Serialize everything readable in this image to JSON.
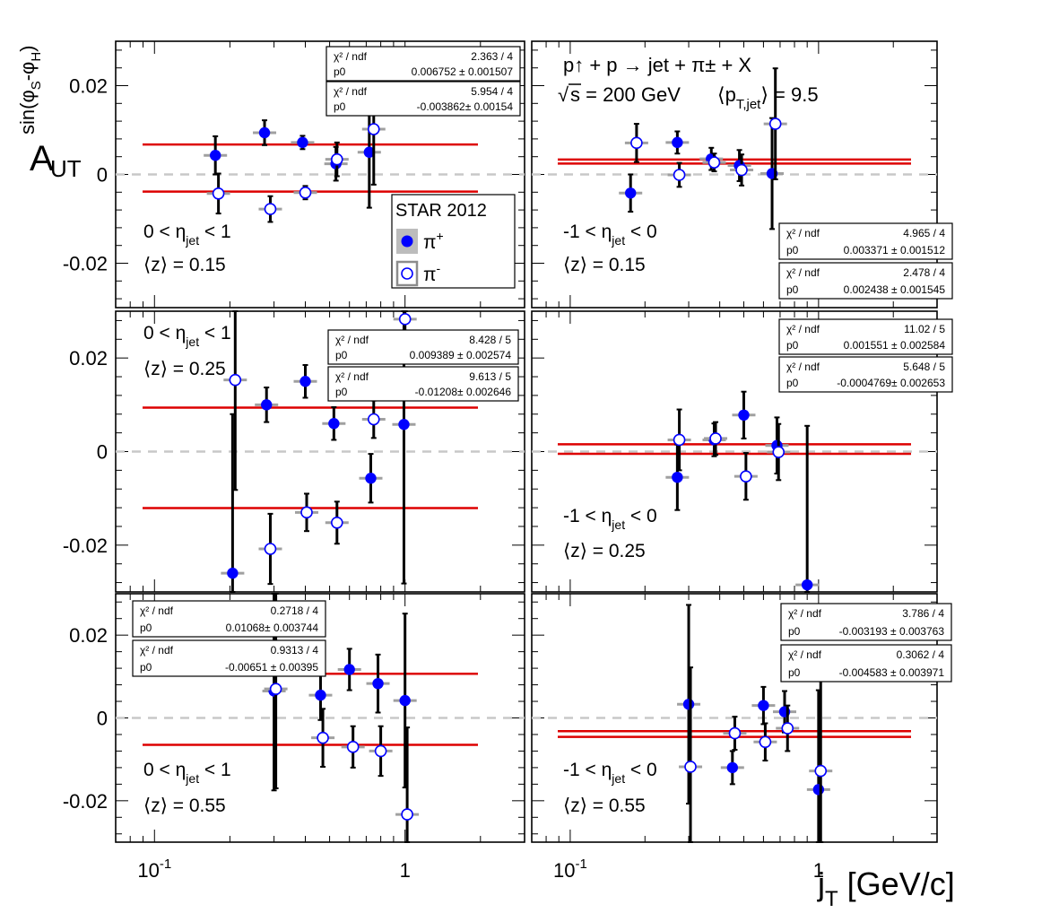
{
  "axes": {
    "ylabel": {
      "main": "A",
      "sub": "UT",
      "sup": "sin(φ",
      "sup_s1": "S",
      "sup_mid": "-φ",
      "sup_s2": "H",
      "sup_end": ")"
    },
    "xlabel": {
      "main": "j",
      "sub": "T",
      "unit": " [GeV/c]"
    },
    "ytick_labels": [
      "0.02",
      "0",
      "-0.02"
    ],
    "xtick_labels": [
      {
        "base": "10",
        "exp": "-1"
      },
      {
        "base": "1",
        "exp": ""
      }
    ]
  },
  "process": {
    "line1": "p↑ + p → jet + π± + X",
    "sqrt": "√",
    "s_text": "s = 200 GeV",
    "pt_text": "⟨p",
    "pt_sub": "T,jet",
    "pt_end": "⟩ = 9.5"
  },
  "legend": {
    "title": "STAR 2012",
    "pi_plus": "π",
    "pi_plus_sup": "+",
    "pi_minus": "π",
    "pi_minus_sup": "-"
  },
  "fit_labels": {
    "chi2": "χ² / ndf",
    "p0": "p0"
  },
  "eta_labels": {
    "pos": {
      "pre": "0 < η",
      "sub": "jet",
      "post": " < 1"
    },
    "neg": {
      "pre": "-1 < η",
      "sub": "jet",
      "post": " < 0"
    }
  },
  "colors": {
    "pi_plus": "#0000ff",
    "pi_minus": "#0000ff",
    "fit_line": "#dd0000",
    "zero_line": "#c8c8c8",
    "xerr_minus": "#a0a0a0"
  },
  "chart_data": [
    {
      "type": "scatter",
      "panel": "top-left",
      "eta": "pos",
      "z_label": "⟨z⟩ = 0.15",
      "xscale": "log",
      "xlim": [
        0.07,
        3.0
      ],
      "ylim": [
        -0.03,
        0.03
      ],
      "fits": [
        {
          "chi2": "2.363 / 4",
          "p0": "0.006752 ± 0.001507",
          "value": 0.00675
        },
        {
          "chi2": "5.954 / 4",
          "p0": "-0.003862± 0.00154",
          "value": -0.00386
        }
      ],
      "series": [
        {
          "name": "π+",
          "points": [
            [
              0.175,
              0.0043,
              0.0043
            ],
            [
              0.275,
              0.0094,
              0.0028
            ],
            [
              0.39,
              0.0072,
              0.0015
            ],
            [
              0.53,
              0.0024,
              0.0038
            ],
            [
              0.72,
              0.005,
              0.0125
            ]
          ]
        },
        {
          "name": "π-",
          "points": [
            [
              0.18,
              -0.0043,
              0.0045
            ],
            [
              0.29,
              -0.0078,
              0.0029
            ],
            [
              0.4,
              -0.0041,
              0.0015
            ],
            [
              0.535,
              0.0034,
              0.0038
            ],
            [
              0.75,
              0.0102,
              0.0125
            ]
          ]
        }
      ]
    },
    {
      "type": "scatter",
      "panel": "top-right",
      "eta": "neg",
      "z_label": "⟨z⟩ = 0.15",
      "xscale": "log",
      "xlim": [
        0.07,
        3.0
      ],
      "ylim": [
        -0.03,
        0.03
      ],
      "fits": [
        {
          "chi2": "4.965 / 4",
          "p0": "0.003371 ± 0.001512",
          "value": 0.00337
        },
        {
          "chi2": "2.478 / 4",
          "p0": "0.002438 ± 0.001545",
          "value": 0.00244
        }
      ],
      "series": [
        {
          "name": "π+",
          "points": [
            [
              0.175,
              -0.0042,
              0.0042
            ],
            [
              0.27,
              0.0072,
              0.0025
            ],
            [
              0.37,
              0.0035,
              0.0025
            ],
            [
              0.48,
              0.002,
              0.0035
            ],
            [
              0.65,
              0.0002,
              0.0125
            ]
          ]
        },
        {
          "name": "π-",
          "points": [
            [
              0.185,
              0.0071,
              0.0043
            ],
            [
              0.275,
              -0.0001,
              0.0027
            ],
            [
              0.38,
              0.0027,
              0.002
            ],
            [
              0.49,
              0.001,
              0.0035
            ],
            [
              0.67,
              0.0114,
              0.0125
            ]
          ]
        }
      ]
    },
    {
      "type": "scatter",
      "panel": "middle-left",
      "eta": "pos",
      "z_label": "⟨z⟩ = 0.25",
      "xscale": "log",
      "xlim": [
        0.07,
        3.0
      ],
      "ylim": [
        -0.03,
        0.03
      ],
      "fits": [
        {
          "chi2": "8.428 / 5",
          "p0": "0.009389 ± 0.002574",
          "value": 0.00939
        },
        {
          "chi2": "9.613 / 5",
          "p0": "-0.01208± 0.002646",
          "value": -0.01208
        }
      ],
      "series": [
        {
          "name": "π+",
          "points": [
            [
              0.205,
              -0.026,
              0.034
            ],
            [
              0.28,
              0.01,
              0.0037
            ],
            [
              0.4,
              0.015,
              0.0035
            ],
            [
              0.52,
              0.006,
              0.0035
            ],
            [
              0.73,
              -0.0057,
              0.0052
            ],
            [
              0.99,
              0.0058,
              0.034
            ]
          ]
        },
        {
          "name": "π-",
          "points": [
            [
              0.21,
              0.0153,
              0.0235
            ],
            [
              0.29,
              -0.0208,
              0.0075
            ],
            [
              0.405,
              -0.013,
              0.004
            ],
            [
              0.535,
              -0.0152,
              0.0045
            ],
            [
              0.75,
              0.0069,
              0.004
            ],
            [
              1.0,
              0.0283,
              0.007
            ]
          ]
        }
      ]
    },
    {
      "type": "scatter",
      "panel": "middle-right",
      "eta": "neg",
      "z_label": "⟨z⟩ = 0.25",
      "xscale": "log",
      "xlim": [
        0.07,
        3.0
      ],
      "ylim": [
        -0.03,
        0.03
      ],
      "fits": [
        {
          "chi2": "11.02 / 5",
          "p0": "0.001551 ± 0.002584",
          "value": 0.00155
        },
        {
          "chi2": "5.648 / 5",
          "p0": "-0.0004769± 0.002653",
          "value": -0.00048
        }
      ],
      "series": [
        {
          "name": "π+",
          "points": [
            [
              0.27,
              -0.0055,
              0.007
            ],
            [
              0.38,
              0.0025,
              0.0035
            ],
            [
              0.5,
              0.0078,
              0.005
            ],
            [
              0.68,
              0.0013,
              0.006
            ],
            [
              0.9,
              -0.0285,
              0.034
            ]
          ]
        },
        {
          "name": "π-",
          "points": [
            [
              0.275,
              0.0025,
              0.0065
            ],
            [
              0.385,
              0.0028,
              0.0035
            ],
            [
              0.51,
              -0.0053,
              0.005
            ],
            [
              0.69,
              -0.0001,
              0.006
            ]
          ]
        }
      ]
    },
    {
      "type": "scatter",
      "panel": "bottom-left",
      "eta": "pos",
      "z_label": "⟨z⟩ = 0.55",
      "xscale": "log",
      "xlim": [
        0.07,
        3.0
      ],
      "ylim": [
        -0.03,
        0.03
      ],
      "fits": [
        {
          "chi2": "0.2718 / 4",
          "p0": "0.01068± 0.003744",
          "value": 0.01068
        },
        {
          "chi2": "0.9313 / 4",
          "p0": "-0.00651 ± 0.00395",
          "value": -0.00651
        }
      ],
      "series": [
        {
          "name": "π+",
          "points": [
            [
              0.3,
              0.0065,
              0.024
            ],
            [
              0.46,
              0.0055,
              0.006
            ],
            [
              0.6,
              0.0117,
              0.005
            ],
            [
              0.78,
              0.0083,
              0.007
            ],
            [
              1.0,
              0.0042,
              0.021
            ]
          ]
        },
        {
          "name": "π-",
          "points": [
            [
              0.305,
              0.007,
              0.024
            ],
            [
              0.47,
              -0.0048,
              0.007
            ],
            [
              0.62,
              -0.007,
              0.005
            ],
            [
              0.8,
              -0.008,
              0.006
            ],
            [
              1.02,
              -0.0233,
              0.021
            ]
          ]
        }
      ]
    },
    {
      "type": "scatter",
      "panel": "bottom-right",
      "eta": "neg",
      "z_label": "⟨z⟩ = 0.55",
      "xscale": "log",
      "xlim": [
        0.07,
        3.0
      ],
      "ylim": [
        -0.03,
        0.03
      ],
      "fits": [
        {
          "chi2": "3.786 / 4",
          "p0": "-0.003193 ± 0.003763",
          "value": -0.00319
        },
        {
          "chi2": "0.3062 / 4",
          "p0": "-0.004583 ± 0.003971",
          "value": -0.00458
        }
      ],
      "series": [
        {
          "name": "π+",
          "points": [
            [
              0.3,
              0.0033,
              0.024
            ],
            [
              0.45,
              -0.012,
              0.004
            ],
            [
              0.6,
              0.003,
              0.0045
            ],
            [
              0.73,
              0.0015,
              0.005
            ],
            [
              1.0,
              -0.0173,
              0.024
            ]
          ]
        },
        {
          "name": "π-",
          "points": [
            [
              0.305,
              -0.0118,
              0.024
            ],
            [
              0.46,
              -0.0037,
              0.004
            ],
            [
              0.61,
              -0.0058,
              0.0045
            ],
            [
              0.75,
              -0.0025,
              0.0055
            ],
            [
              1.02,
              -0.0128,
              0.024
            ]
          ]
        }
      ]
    }
  ]
}
